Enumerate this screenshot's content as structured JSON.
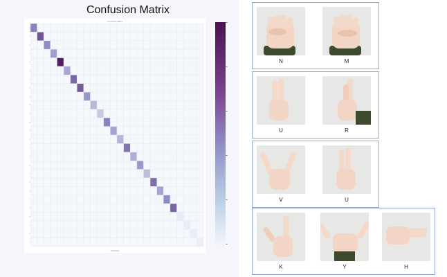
{
  "figure": {
    "title": "Confusion Matrix",
    "matrix_title": "Confusion Matrix",
    "matrix_xlabel": "Predicted",
    "matrix_size": 26
  },
  "chart_data": {
    "type": "heatmap",
    "title": "Confusion Matrix",
    "rows": 26,
    "columns": 26,
    "diagonal_values": [
      0.55,
      0.72,
      0.5,
      0.42,
      0.95,
      0.38,
      0.65,
      0.7,
      0.46,
      0.3,
      0.22,
      0.55,
      0.4,
      0.32,
      0.6,
      0.35,
      0.45,
      0.28,
      0.62,
      0.4,
      0.5,
      0.66,
      0.06,
      0.05,
      0.05,
      0.04
    ],
    "off_diagonal_value": 0.0,
    "colorbar": {
      "low_color": "#f4f7fb",
      "mid_color": "#8f8fc6",
      "high_color": "#4a1250"
    }
  },
  "groups": [
    {
      "name": "group-nm",
      "letters": [
        "N",
        "M"
      ]
    },
    {
      "name": "group-ur",
      "letters": [
        "U",
        "R"
      ]
    },
    {
      "name": "group-vu",
      "letters": [
        "V",
        "U"
      ]
    },
    {
      "name": "group-kyh",
      "letters": [
        "K",
        "Y",
        "H"
      ]
    }
  ],
  "colors": {
    "frame_border": "#8eaadb",
    "skin": "#f2d5c4",
    "sleeve": "#3d4a2e",
    "tile_bg": "#e7e7e5"
  }
}
